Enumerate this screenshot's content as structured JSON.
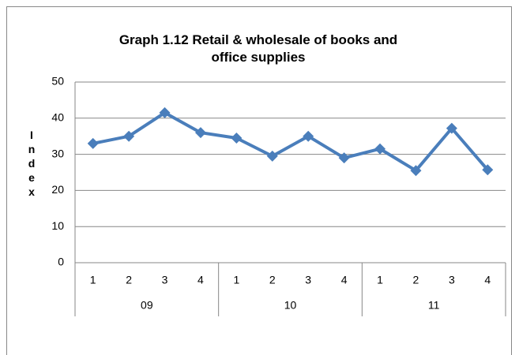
{
  "chart_data": {
    "type": "line",
    "title": "Graph 1.12 Retail & wholesale of books and office supplies",
    "y_label": "Index",
    "categories": [
      "1",
      "2",
      "3",
      "4",
      "1",
      "2",
      "3",
      "4",
      "1",
      "2",
      "3",
      "4"
    ],
    "category_groups": [
      "09",
      "10",
      "11"
    ],
    "series": [
      {
        "color": "#4a7ebb",
        "values": [
          33,
          35,
          41.5,
          36,
          34.5,
          29.5,
          35,
          29,
          31.5,
          25.5,
          37.2,
          25.7
        ]
      }
    ],
    "ylim": [
      0,
      50
    ],
    "yticks": [
      0,
      10,
      20,
      30,
      40,
      50
    ],
    "grid": true
  }
}
